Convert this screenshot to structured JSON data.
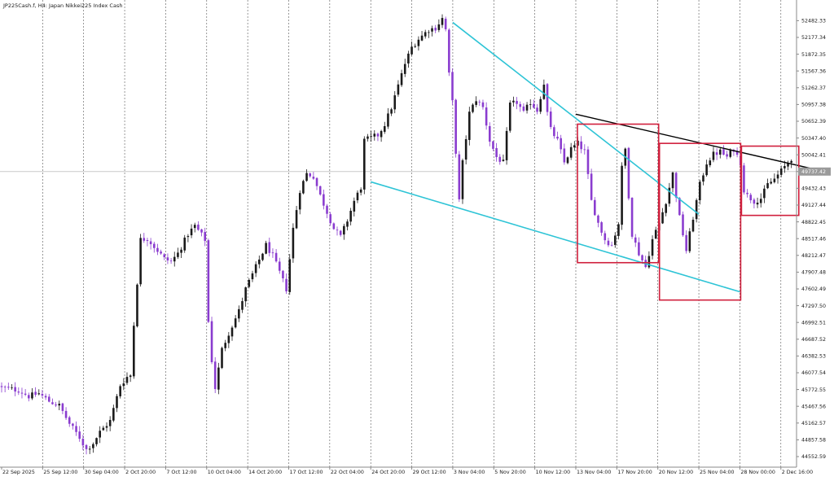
{
  "header": {
    "title": "JP225Cash.f, H4:  Japan Nikkei225 Index Cash"
  },
  "colors": {
    "bull": "#1a1a1a",
    "bear": "#8a3ccf",
    "channel": "#2ec4d6",
    "trend": "#000000",
    "box": "#d01f3c",
    "grid": "#555555",
    "price_line": "#c8c8c8"
  },
  "chart_data": {
    "type": "candlestick",
    "title": "JP225Cash.f, H4:  Japan Nikkei225 Index Cash",
    "timeframe": "H4",
    "y_ticks": [
      52482.33,
      52177.34,
      51872.35,
      51567.36,
      51262.37,
      50957.38,
      50652.39,
      50347.4,
      50042.41,
      49737.42,
      49432.43,
      49127.44,
      48822.45,
      48517.46,
      48212.47,
      47907.48,
      47602.49,
      47297.5,
      46992.51,
      46687.52,
      46382.53,
      46077.54,
      45772.55,
      45467.56,
      45162.57,
      44857.58,
      44552.59
    ],
    "ylim": [
      44360,
      52710
    ],
    "x_ticks": [
      "22 Sep 2025",
      "25 Sep 12:00",
      "30 Sep 04:00",
      "2 Oct 20:00",
      "7 Oct 12:00",
      "10 Oct 04:00",
      "14 Oct 20:00",
      "17 Oct 12:00",
      "22 Oct 04:00",
      "24 Oct 20:00",
      "29 Oct 12:00",
      "3 Nov 04:00",
      "5 Nov 20:00",
      "10 Nov 12:00",
      "13 Nov 04:00",
      "17 Nov 20:00",
      "20 Nov 12:00",
      "25 Nov 04:00",
      "28 Nov 00:00",
      "2 Dec 16:00"
    ],
    "current_price": 49737.42,
    "close_path": [
      [
        0,
        45800
      ],
      [
        5,
        45760
      ],
      [
        8,
        45650
      ],
      [
        11,
        45700
      ],
      [
        14,
        45560
      ],
      [
        17,
        45480
      ],
      [
        20,
        45150
      ],
      [
        23,
        44900
      ],
      [
        25,
        44680
      ],
      [
        27,
        44800
      ],
      [
        29,
        45000
      ],
      [
        32,
        45200
      ],
      [
        35,
        45850
      ],
      [
        37,
        46000
      ],
      [
        38,
        46030
      ],
      [
        39,
        46950
      ],
      [
        41,
        48500
      ],
      [
        43,
        48520
      ],
      [
        46,
        48300
      ],
      [
        48,
        48150
      ],
      [
        50,
        48100
      ],
      [
        52,
        48250
      ],
      [
        55,
        48600
      ],
      [
        57,
        48750
      ],
      [
        60,
        48500
      ],
      [
        61,
        47000
      ],
      [
        62,
        46300
      ],
      [
        63,
        45800
      ],
      [
        65,
        46500
      ],
      [
        67,
        46800
      ],
      [
        70,
        47200
      ],
      [
        72,
        47600
      ],
      [
        75,
        48000
      ],
      [
        78,
        48400
      ],
      [
        80,
        48200
      ],
      [
        82,
        47900
      ],
      [
        84,
        47600
      ],
      [
        86,
        48700
      ],
      [
        88,
        49400
      ],
      [
        90,
        49700
      ],
      [
        92,
        49650
      ],
      [
        94,
        49300
      ],
      [
        96,
        49000
      ],
      [
        98,
        48700
      ],
      [
        100,
        48550
      ],
      [
        102,
        48850
      ],
      [
        104,
        49200
      ],
      [
        106,
        49450
      ],
      [
        107,
        50300
      ],
      [
        109,
        50350
      ],
      [
        111,
        50400
      ],
      [
        113,
        50600
      ],
      [
        115,
        50900
      ],
      [
        117,
        51300
      ],
      [
        119,
        51700
      ],
      [
        121,
        52000
      ],
      [
        123,
        52150
      ],
      [
        126,
        52320
      ],
      [
        128,
        52350
      ],
      [
        130,
        52520
      ],
      [
        131,
        52320
      ],
      [
        132,
        51500
      ],
      [
        133,
        51000
      ],
      [
        135,
        49200
      ],
      [
        136,
        49900
      ],
      [
        138,
        50800
      ],
      [
        140,
        51050
      ],
      [
        142,
        50900
      ],
      [
        144,
        50300
      ],
      [
        146,
        50000
      ],
      [
        148,
        49900
      ],
      [
        150,
        50950
      ],
      [
        152,
        51000
      ],
      [
        154,
        50800
      ],
      [
        156,
        51000
      ],
      [
        158,
        50850
      ],
      [
        160,
        51350
      ],
      [
        161,
        50800
      ],
      [
        162,
        50500
      ],
      [
        164,
        50300
      ],
      [
        166,
        49900
      ],
      [
        168,
        50150
      ],
      [
        170,
        50250
      ],
      [
        172,
        50100
      ],
      [
        174,
        49200
      ],
      [
        176,
        48800
      ],
      [
        178,
        48500
      ],
      [
        180,
        48400
      ],
      [
        182,
        48800
      ],
      [
        183,
        49800
      ],
      [
        184,
        50150
      ],
      [
        185,
        49300
      ],
      [
        186,
        48600
      ],
      [
        188,
        48250
      ],
      [
        190,
        48000
      ],
      [
        192,
        48500
      ],
      [
        194,
        48800
      ],
      [
        196,
        49200
      ],
      [
        198,
        49700
      ],
      [
        200,
        48900
      ],
      [
        202,
        48300
      ],
      [
        204,
        48900
      ],
      [
        206,
        49500
      ],
      [
        208,
        49900
      ],
      [
        210,
        50050
      ],
      [
        212,
        50100
      ],
      [
        214,
        50000
      ],
      [
        216,
        50150
      ],
      [
        218,
        49900
      ],
      [
        219,
        49400
      ],
      [
        220,
        49300
      ],
      [
        222,
        49200
      ],
      [
        224,
        49250
      ],
      [
        226,
        49500
      ],
      [
        228,
        49600
      ],
      [
        230,
        49750
      ],
      [
        232,
        49900
      ],
      [
        233,
        49980
      ]
    ],
    "annotations": {
      "channel_upper": [
        [
          "3 Nov 04:00",
          52450
        ],
        [
          "25 Nov 04:00",
          48960
        ]
      ],
      "channel_lower": [
        [
          "24 Oct 20:00",
          49550
        ],
        [
          "28 Nov 00:00",
          47550
        ]
      ],
      "resistance_line": [
        [
          "13 Nov 04:00",
          50780
        ],
        [
          "2 Dec 16:00",
          49920
        ]
      ],
      "boxes": [
        {
          "from": "13 Nov 04:00",
          "to": "20 Nov 12:00",
          "high": 50600,
          "low": 48080
        },
        {
          "from": "20 Nov 12:00",
          "to": "28 Nov 00:00",
          "high": 50250,
          "low": 47400
        },
        {
          "from": "28 Nov 00:00",
          "to": "2 Dec 16:00",
          "high": 50200,
          "low": 48940
        }
      ]
    }
  }
}
